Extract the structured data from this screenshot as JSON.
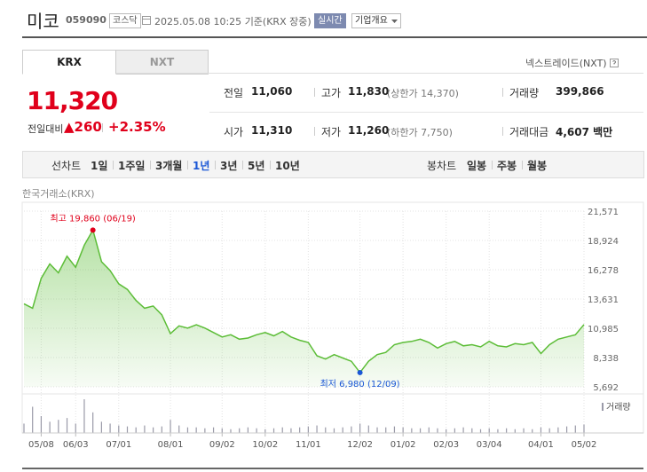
{
  "header": {
    "name": "미코",
    "code": "059090",
    "market": "코스닥",
    "datetime": "2025.05.08 10:25",
    "basis": "기준(KRX 장중)",
    "realtime": "실시간",
    "overview": "기업개요"
  },
  "tabs": {
    "items": [
      "KRX",
      "NXT"
    ],
    "selected": "KRX",
    "nxt_link": "넥스트레이드(NXT)"
  },
  "quote": {
    "price": "11,320",
    "change_label": "전일대비",
    "change": "▲260",
    "change_pct": "+2.35%"
  },
  "stats": {
    "rows": [
      [
        {
          "label": "전일",
          "value": "11,060"
        },
        {
          "label": "고가",
          "value": "11,830",
          "note": "(상한가 14,370)"
        },
        {
          "label": "거래량",
          "value": "399,866"
        }
      ],
      [
        {
          "label": "시가",
          "value": "11,310"
        },
        {
          "label": "저가",
          "value": "11,260",
          "note": "(하한가 7,750)"
        },
        {
          "label": "거래대금",
          "value": "4,607 백만"
        }
      ]
    ]
  },
  "periods": {
    "line_label": "선차트",
    "line": [
      "1일",
      "1주일",
      "3개월",
      "1년",
      "3년",
      "5년",
      "10년"
    ],
    "selected": "1년",
    "candle_label": "봉차트",
    "candle": [
      "일봉",
      "주봉",
      "월봉"
    ]
  },
  "chart_data": {
    "type": "line",
    "source": "한국거래소(KRX)",
    "color": "#5cbd37",
    "grid": true,
    "categories": [
      null,
      null,
      "05/08",
      null,
      null,
      null,
      "06/03",
      null,
      null,
      null,
      null,
      "07/01",
      null,
      null,
      null,
      null,
      null,
      "08/01",
      null,
      null,
      null,
      null,
      null,
      "09/02",
      null,
      null,
      null,
      null,
      "10/02",
      null,
      null,
      null,
      null,
      "11/01",
      null,
      null,
      null,
      null,
      null,
      "12/02",
      null,
      null,
      null,
      null,
      "01/02",
      null,
      null,
      null,
      null,
      "02/03",
      null,
      null,
      null,
      null,
      "03/04",
      null,
      null,
      null,
      null,
      null,
      "04/01",
      null,
      null,
      null,
      null,
      "05/02"
    ],
    "values": [
      13200,
      12800,
      15500,
      16800,
      16000,
      17500,
      16500,
      18500,
      19860,
      17000,
      16200,
      15000,
      14500,
      13500,
      12800,
      13000,
      12200,
      10500,
      11200,
      11000,
      11300,
      11000,
      10600,
      10200,
      10400,
      10000,
      10100,
      10400,
      10600,
      10300,
      10700,
      10200,
      9900,
      9700,
      8500,
      8200,
      8600,
      8300,
      8000,
      6980,
      8000,
      8600,
      8800,
      9500,
      9700,
      9800,
      10000,
      9700,
      9200,
      9600,
      9800,
      9400,
      9500,
      9300,
      9800,
      9400,
      9300,
      9600,
      9500,
      9700,
      8700,
      9500,
      10000,
      10200,
      10400,
      11320
    ],
    "ylim": [
      5692,
      21571
    ],
    "yticks": [
      {
        "value": 21571,
        "label": "21,571"
      },
      {
        "value": 18924,
        "label": "18,924"
      },
      {
        "value": 16278,
        "label": "16,278"
      },
      {
        "value": 13631,
        "label": "13,631"
      },
      {
        "value": 10985,
        "label": "10,985"
      },
      {
        "value": 8338,
        "label": "8,338"
      },
      {
        "value": 5692,
        "label": "5,692"
      }
    ],
    "annotations": [
      "최고 19,860 (06/19)",
      "최저 6,980 (12/09)"
    ],
    "volume": {
      "name": "거래량",
      "color": "#9a9aa8",
      "values": [
        500000,
        1400000,
        900000,
        600000,
        700000,
        800000,
        500000,
        1800000,
        1100000,
        600000,
        500000,
        400000,
        350000,
        300000,
        400000,
        300000,
        350000,
        700000,
        400000,
        300000,
        300000,
        250000,
        300000,
        250000,
        200000,
        250000,
        300000,
        250000,
        200000,
        250000,
        300000,
        250000,
        300000,
        350000,
        400000,
        300000,
        250000,
        300000,
        350000,
        500000,
        400000,
        300000,
        300000,
        350000,
        300000,
        250000,
        250000,
        300000,
        250000,
        200000,
        250000,
        300000,
        250000,
        200000,
        250000,
        200000,
        250000,
        200000,
        250000,
        200000,
        300000,
        250000,
        300000,
        350000,
        400000,
        450000
      ]
    }
  }
}
